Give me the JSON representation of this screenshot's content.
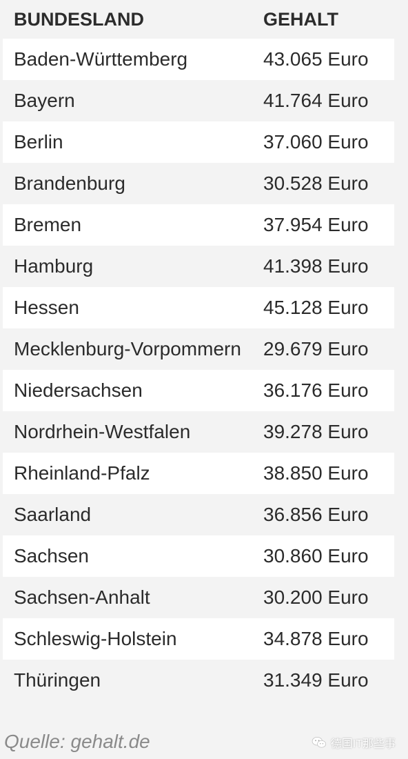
{
  "table": {
    "headers": {
      "state": "BUNDESLAND",
      "salary": "GEHALT"
    },
    "rows": [
      {
        "state": "Baden-Württemberg",
        "salary": "43.065 Euro"
      },
      {
        "state": "Bayern",
        "salary": "41.764 Euro"
      },
      {
        "state": "Berlin",
        "salary": "37.060 Euro"
      },
      {
        "state": "Brandenburg",
        "salary": "30.528 Euro"
      },
      {
        "state": "Bremen",
        "salary": "37.954 Euro"
      },
      {
        "state": "Hamburg",
        "salary": "41.398 Euro"
      },
      {
        "state": "Hessen",
        "salary": "45.128 Euro"
      },
      {
        "state": "Mecklenburg-Vorpommern",
        "salary": "29.679 Euro"
      },
      {
        "state": "Niedersachsen",
        "salary": "36.176 Euro"
      },
      {
        "state": "Nordrhein-Westfalen",
        "salary": "39.278 Euro"
      },
      {
        "state": "Rheinland-Pfalz",
        "salary": "38.850 Euro"
      },
      {
        "state": "Saarland",
        "salary": "36.856 Euro"
      },
      {
        "state": "Sachsen",
        "salary": "30.860 Euro"
      },
      {
        "state": "Sachsen-Anhalt",
        "salary": "30.200 Euro"
      },
      {
        "state": "Schleswig-Holstein",
        "salary": "34.878 Euro"
      },
      {
        "state": "Thüringen",
        "salary": "31.349 Euro"
      }
    ]
  },
  "source": "Quelle: gehalt.de",
  "watermark": {
    "icon": "wechat-icon",
    "text": "德国IT那些事"
  },
  "colors": {
    "background": "#f3f3f3",
    "row_alt": "#ffffff",
    "text": "#2b2b2b",
    "source_text": "#8a8a8a"
  }
}
